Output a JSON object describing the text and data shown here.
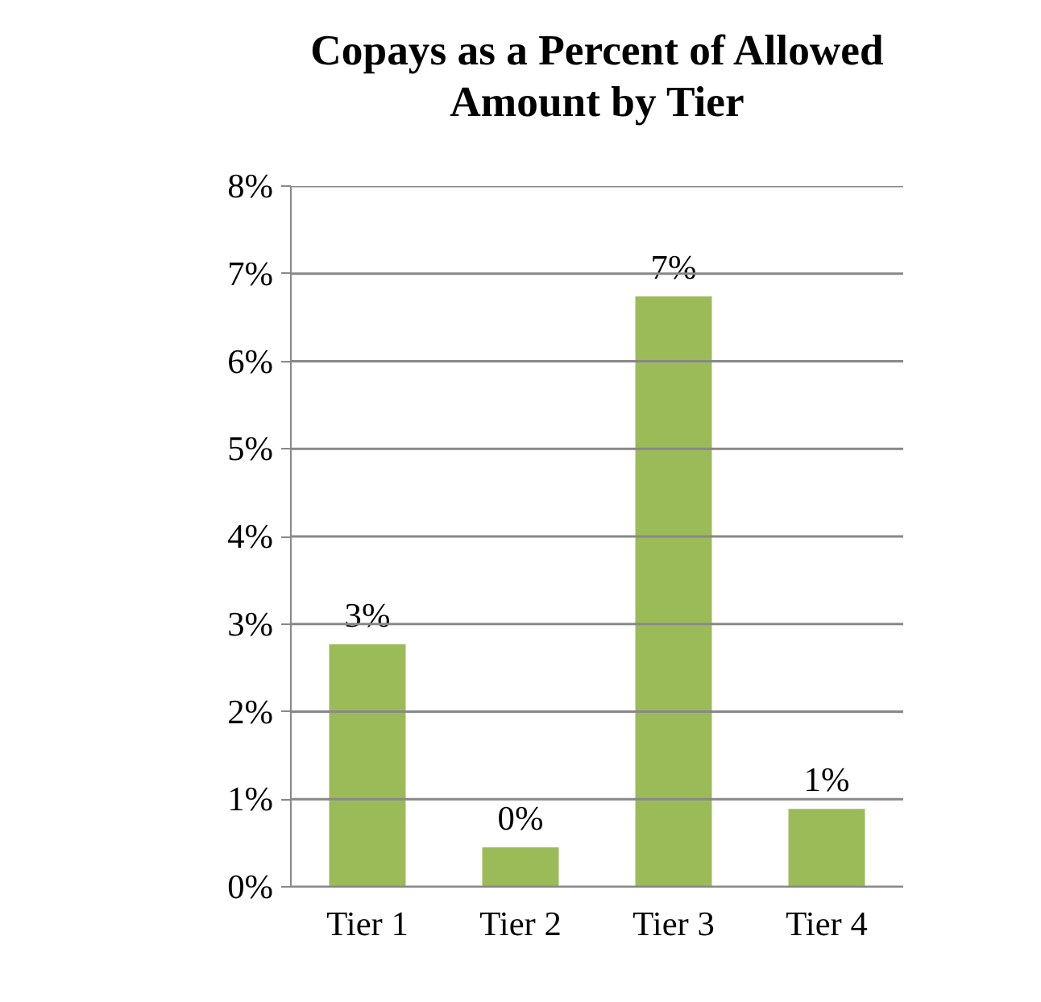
{
  "chart_data": {
    "type": "bar",
    "title": "Copays as a Percent of Allowed Amount by Tier",
    "categories": [
      "Tier 1",
      "Tier 2",
      "Tier 3",
      "Tier 4"
    ],
    "values": [
      2.77,
      0.45,
      6.74,
      0.89
    ],
    "value_labels": [
      "3%",
      "0%",
      "7%",
      "1%"
    ],
    "color": "#9bbb59",
    "ylim": [
      0,
      8
    ],
    "yticks": [
      {
        "value": 0,
        "label": "0%"
      },
      {
        "value": 1,
        "label": "1%"
      },
      {
        "value": 2,
        "label": "2%"
      },
      {
        "value": 3,
        "label": "3%"
      },
      {
        "value": 4,
        "label": "4%"
      },
      {
        "value": 5,
        "label": "5%"
      },
      {
        "value": 6,
        "label": "6%"
      },
      {
        "value": 7,
        "label": "7%"
      },
      {
        "value": 8,
        "label": "8%"
      }
    ],
    "grid": "y"
  }
}
